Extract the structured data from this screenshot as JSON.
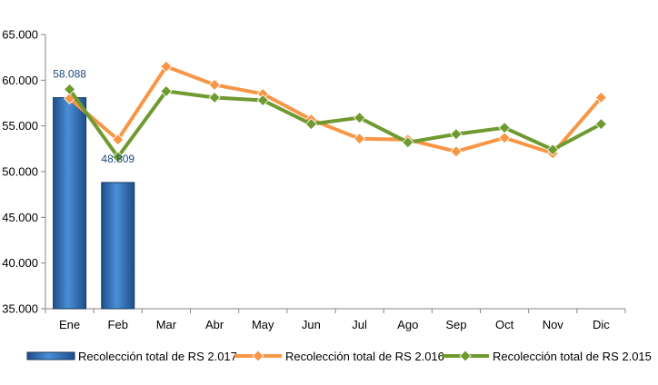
{
  "chart_data": {
    "type": "bar",
    "categories": [
      "Ene",
      "Feb",
      "Mar",
      "Abr",
      "May",
      "Jun",
      "Jul",
      "Ago",
      "Sep",
      "Oct",
      "Nov",
      "Dic"
    ],
    "ylim": [
      35000,
      65000
    ],
    "yticks": [
      35000,
      40000,
      45000,
      50000,
      55000,
      60000,
      65000
    ],
    "ytick_labels": [
      "35.000",
      "40.000",
      "45.000",
      "50.000",
      "55.000",
      "60.000",
      "65.000"
    ],
    "grid": false,
    "legend_position": "bottom",
    "series": [
      {
        "name": "Recolección total de RS 2.017",
        "kind": "bar",
        "color": "#2e75b6",
        "values": [
          58088,
          48809,
          null,
          null,
          null,
          null,
          null,
          null,
          null,
          null,
          null,
          null
        ],
        "data_labels": [
          "58.088",
          "48.809",
          null,
          null,
          null,
          null,
          null,
          null,
          null,
          null,
          null,
          null
        ]
      },
      {
        "name": "Recolección total de RS 2.016",
        "kind": "line",
        "color": "#f79646",
        "values": [
          58000,
          53500,
          61500,
          59500,
          58500,
          55700,
          53600,
          53500,
          52200,
          53700,
          52000,
          58100
        ]
      },
      {
        "name": "Recolección total de RS 2.015",
        "kind": "line",
        "color": "#6e9a2f",
        "values": [
          59000,
          51600,
          58800,
          58100,
          57800,
          55200,
          55900,
          53200,
          54100,
          54800,
          52400,
          55200
        ]
      }
    ]
  }
}
